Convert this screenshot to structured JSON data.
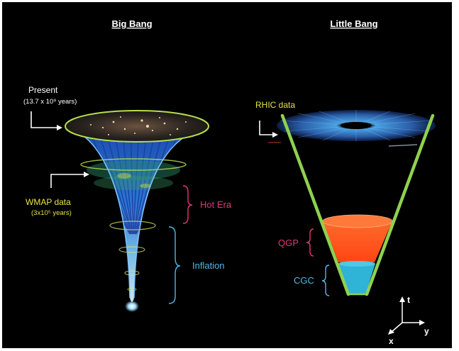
{
  "left": {
    "title": "Big Bang",
    "present_label": "Present",
    "present_time": "(13.7 x 10⁹ years)",
    "wmap_label": "WMAP data",
    "wmap_time": "(3x10⁵ years)",
    "hot_era_label": "Hot Era",
    "inflation_label": "Inflation"
  },
  "right": {
    "title": "Little Bang",
    "rhic_label": "RHIC data",
    "qgp_label": "QGP",
    "cgc_label": "CGC"
  },
  "axes": {
    "t_label": "t",
    "x_label": "x",
    "y_label": "y"
  },
  "colors": {
    "background": "#000000",
    "cone_edge": "#8fd14f",
    "funnel_blue": "#2f6fd6",
    "qgp_orange": "#ff5a1f",
    "cgc_cyan": "#2fb3d6",
    "hot_era_pink": "#e0357a",
    "inflation_blue": "#52b8e6",
    "wmap_yellow": "#e8e24a"
  }
}
